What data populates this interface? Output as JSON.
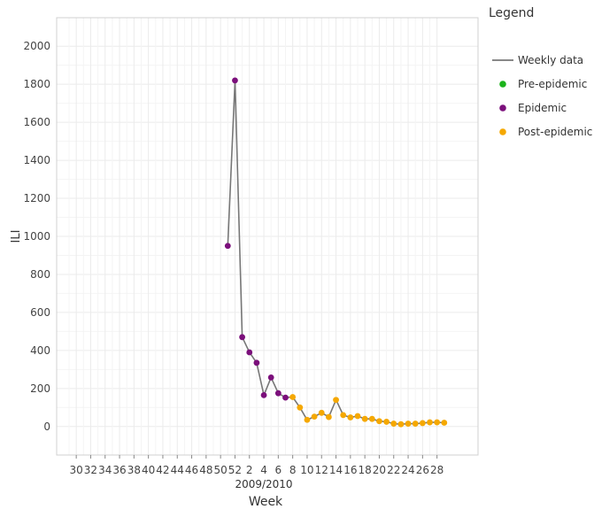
{
  "chart_data": {
    "type": "line",
    "xlabel": "Week",
    "xlabel_secondary": "2009/2010",
    "ylabel": "ILI",
    "ylim": [
      -150,
      2150
    ],
    "yticks": [
      0,
      200,
      400,
      600,
      800,
      1000,
      1200,
      1400,
      1600,
      1800,
      2000
    ],
    "x_tick_labels": [
      "30",
      "32",
      "34",
      "36",
      "38",
      "40",
      "42",
      "44",
      "46",
      "48",
      "50",
      "52",
      "2",
      "4",
      "6",
      "8",
      "10",
      "12",
      "14",
      "16",
      "18",
      "20",
      "22",
      "24",
      "26",
      "28"
    ],
    "grid": true,
    "legend": {
      "title": "Legend",
      "position": "right",
      "entries": [
        {
          "label": "Weekly data",
          "symbol": "line",
          "color": "#777777"
        },
        {
          "label": "Pre-epidemic",
          "symbol": "point",
          "color": "#1bb31b"
        },
        {
          "label": "Epidemic",
          "symbol": "point",
          "color": "#7b0f7b"
        },
        {
          "label": "Post-epidemic",
          "symbol": "point",
          "color": "#f5a800"
        }
      ]
    },
    "series": [
      {
        "name": "Weekly data",
        "x": [
          "2009/51",
          "2009/52",
          "2010/1",
          "2010/2",
          "2010/3",
          "2010/4",
          "2010/5",
          "2010/6",
          "2010/7",
          "2010/8",
          "2010/9",
          "2010/10",
          "2010/11",
          "2010/12",
          "2010/13",
          "2010/14",
          "2010/15",
          "2010/16",
          "2010/17",
          "2010/18",
          "2010/19",
          "2010/20",
          "2010/21",
          "2010/22",
          "2010/23",
          "2010/24",
          "2010/25",
          "2010/26",
          "2010/27",
          "2010/28",
          "2010/29"
        ],
        "values": [
          950,
          1820,
          470,
          390,
          335,
          165,
          258,
          175,
          152,
          155,
          100,
          35,
          52,
          72,
          50,
          140,
          60,
          48,
          55,
          40,
          40,
          28,
          25,
          15,
          12,
          15,
          15,
          18,
          22,
          22,
          20
        ],
        "phase": [
          "Epidemic",
          "Epidemic",
          "Epidemic",
          "Epidemic",
          "Epidemic",
          "Epidemic",
          "Epidemic",
          "Epidemic",
          "Epidemic",
          "Post-epidemic",
          "Post-epidemic",
          "Post-epidemic",
          "Post-epidemic",
          "Post-epidemic",
          "Post-epidemic",
          "Post-epidemic",
          "Post-epidemic",
          "Post-epidemic",
          "Post-epidemic",
          "Post-epidemic",
          "Post-epidemic",
          "Post-epidemic",
          "Post-epidemic",
          "Post-epidemic",
          "Post-epidemic",
          "Post-epidemic",
          "Post-epidemic",
          "Post-epidemic",
          "Post-epidemic",
          "Post-epidemic",
          "Post-epidemic"
        ]
      }
    ]
  }
}
